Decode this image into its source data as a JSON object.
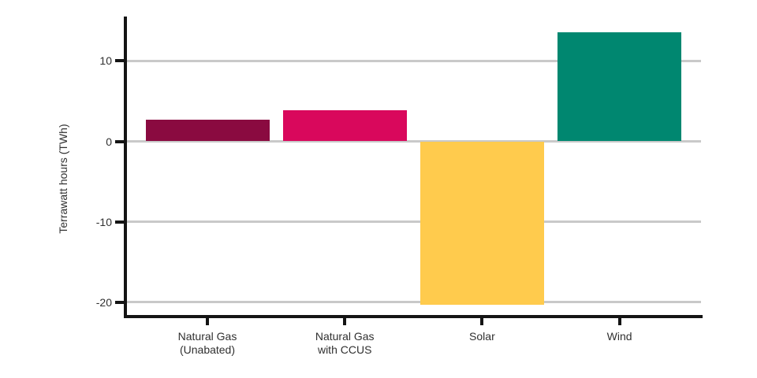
{
  "chart_data": {
    "type": "bar",
    "title": "",
    "xlabel": "",
    "ylabel": "Terrawatt hours (TWh)",
    "unit": "TWh",
    "categories": [
      "Natural Gas (Unabated)",
      "Natural Gas with CCUS",
      "Solar",
      "Wind"
    ],
    "category_label_lines": [
      [
        "Natural Gas",
        "(Unabated)"
      ],
      [
        "Natural Gas",
        "with CCUS"
      ],
      [
        "Solar"
      ],
      [
        "Wind"
      ]
    ],
    "values": [
      2.7,
      3.9,
      -20.3,
      13.6
    ],
    "bar_colors": [
      "#8A0A40",
      "#D9085C",
      "#FFCB4D",
      "#008770"
    ],
    "yticks": [
      10,
      0,
      -10,
      -20
    ],
    "ytick_labels": [
      "10",
      "0",
      "-10",
      "-20"
    ],
    "ylim": [
      -21.5,
      15.5
    ],
    "grid": "horizontal-major-only",
    "legend": "none"
  },
  "style_colors": {
    "background": "#FFFFFF",
    "gridline": "#C9C9C9",
    "axis": "#141414",
    "text": "#303030"
  }
}
